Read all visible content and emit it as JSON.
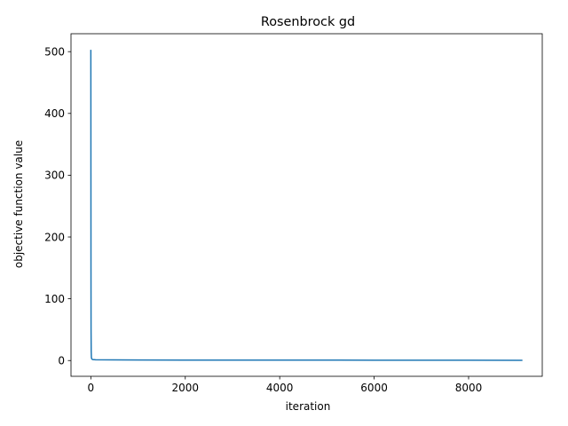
{
  "chart_data": {
    "type": "line",
    "title": "Rosenbrock gd",
    "xlabel": "iteration",
    "ylabel": "objective function value",
    "xlim": [
      -420,
      9560
    ],
    "ylim": [
      -25.5,
      529
    ],
    "xticks": [
      0,
      2000,
      4000,
      6000,
      8000
    ],
    "xtick_labels": [
      "0",
      "2000",
      "4000",
      "6000",
      "8000"
    ],
    "yticks": [
      0,
      100,
      200,
      300,
      400,
      500
    ],
    "ytick_labels": [
      "0",
      "100",
      "200",
      "300",
      "400",
      "500"
    ],
    "grid": false,
    "series": [
      {
        "color": "#1f77b4",
        "x": [
          0,
          1,
          2,
          3,
          5,
          8,
          12,
          20,
          40,
          100,
          500,
          1000,
          2000,
          4000,
          6000,
          8000,
          9140
        ],
        "y": [
          503,
          420,
          300,
          150,
          50,
          15,
          5,
          2.5,
          1.6,
          1.2,
          1.0,
          0.9,
          0.8,
          0.7,
          0.6,
          0.5,
          0.4
        ]
      }
    ]
  }
}
